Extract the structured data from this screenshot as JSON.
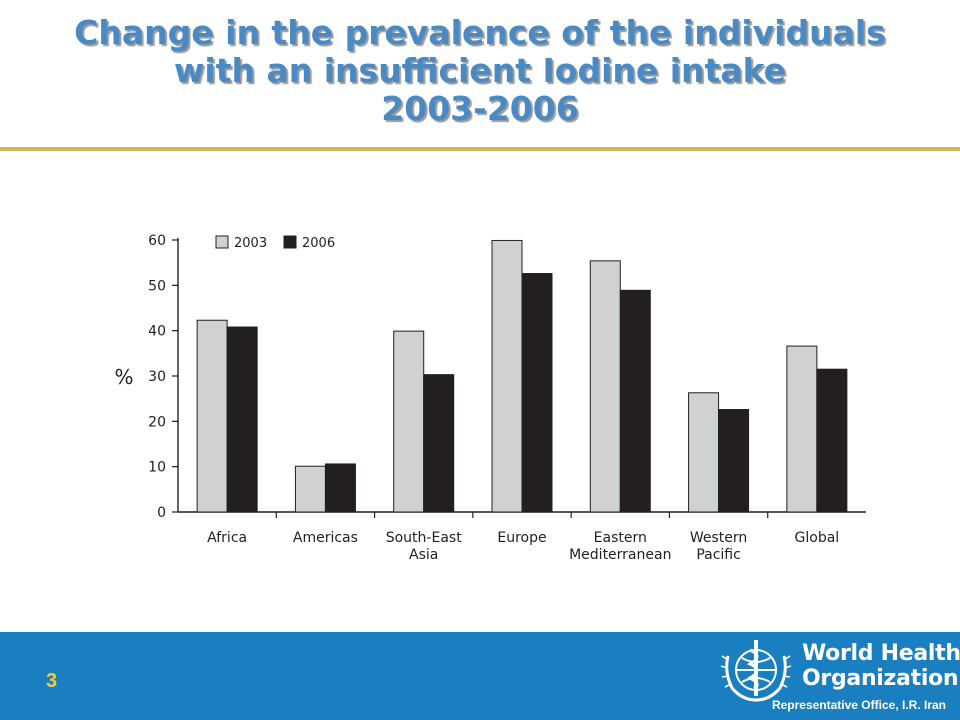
{
  "title": {
    "line1": "Change in the prevalence of the individuals",
    "line2": "with an insufficient Iodine intake",
    "line3": "2003-2006"
  },
  "colors": {
    "title": "#4a8ac4",
    "rule": "#d3b65a",
    "footer": "#1a7fc0",
    "page_number": "#f2d030",
    "series_2003": "#d0d1d3",
    "series_2006": "#231f20"
  },
  "chart_data": {
    "type": "bar",
    "title": "",
    "xlabel": "",
    "ylabel": "%",
    "ylim": [
      0,
      60
    ],
    "yticks": [
      0,
      10,
      20,
      30,
      40,
      50,
      60
    ],
    "grid": false,
    "legend": "top-left",
    "categories": [
      [
        "Africa"
      ],
      [
        "Americas"
      ],
      [
        "South-East",
        "Asia"
      ],
      [
        "Europe"
      ],
      [
        "Eastern",
        "Mediterranean"
      ],
      [
        "Western",
        "Pacific"
      ],
      [
        "Global"
      ]
    ],
    "series": [
      {
        "name": "2003",
        "values": [
          42.3,
          10.1,
          39.9,
          59.9,
          55.4,
          26.3,
          36.6
        ]
      },
      {
        "name": "2006",
        "values": [
          40.8,
          10.6,
          30.3,
          52.6,
          48.9,
          22.6,
          31.5
        ]
      }
    ]
  },
  "footer": {
    "page_number": "3",
    "org_line1": "World Health",
    "org_line2": "Organization",
    "office": "Representative Office, I.R. Iran"
  },
  "icons": {
    "emblem": "who-emblem-icon"
  }
}
